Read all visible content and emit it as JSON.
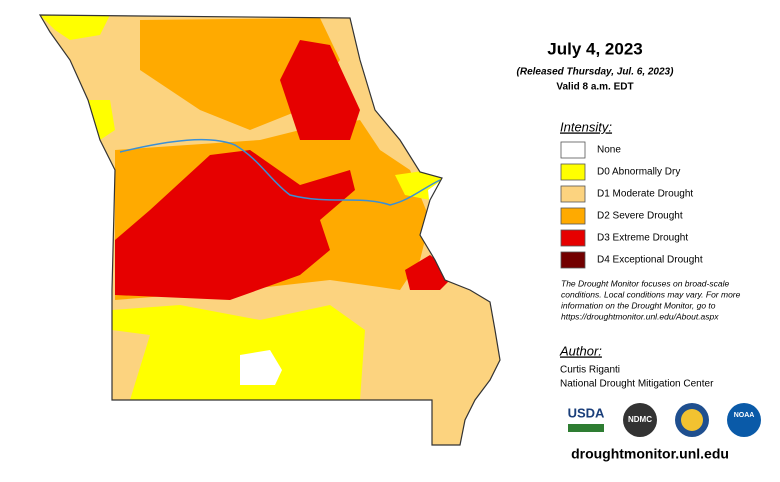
{
  "title": "July 4, 2023",
  "subtitle": "(Released Thursday, Jul. 6, 2023)",
  "valid": "Valid 8 a.m. EDT",
  "legend": {
    "title": "Intensity:",
    "items": [
      {
        "label": "None",
        "color": "#ffffff"
      },
      {
        "label": "D0 Abnormally Dry",
        "color": "#ffff00"
      },
      {
        "label": "D1 Moderate Drought",
        "color": "#fcd37f"
      },
      {
        "label": "D2 Severe Drought",
        "color": "#ffaa00"
      },
      {
        "label": "D3 Extreme Drought",
        "color": "#e60000"
      },
      {
        "label": "D4 Exceptional Drought",
        "color": "#730000"
      }
    ]
  },
  "note": [
    "The Drought Monitor focuses on broad-scale",
    "conditions. Local conditions may vary. For more",
    "information on the Drought Monitor, go to",
    "https://droughtmonitor.unl.edu/About.aspx"
  ],
  "author": {
    "title": "Author:",
    "name": "Curtis Riganti",
    "org": "National Drought Mitigation Center"
  },
  "logos": [
    "USDA",
    "NDMC",
    "NOAA"
  ],
  "url": "droughtmonitor.unl.edu"
}
